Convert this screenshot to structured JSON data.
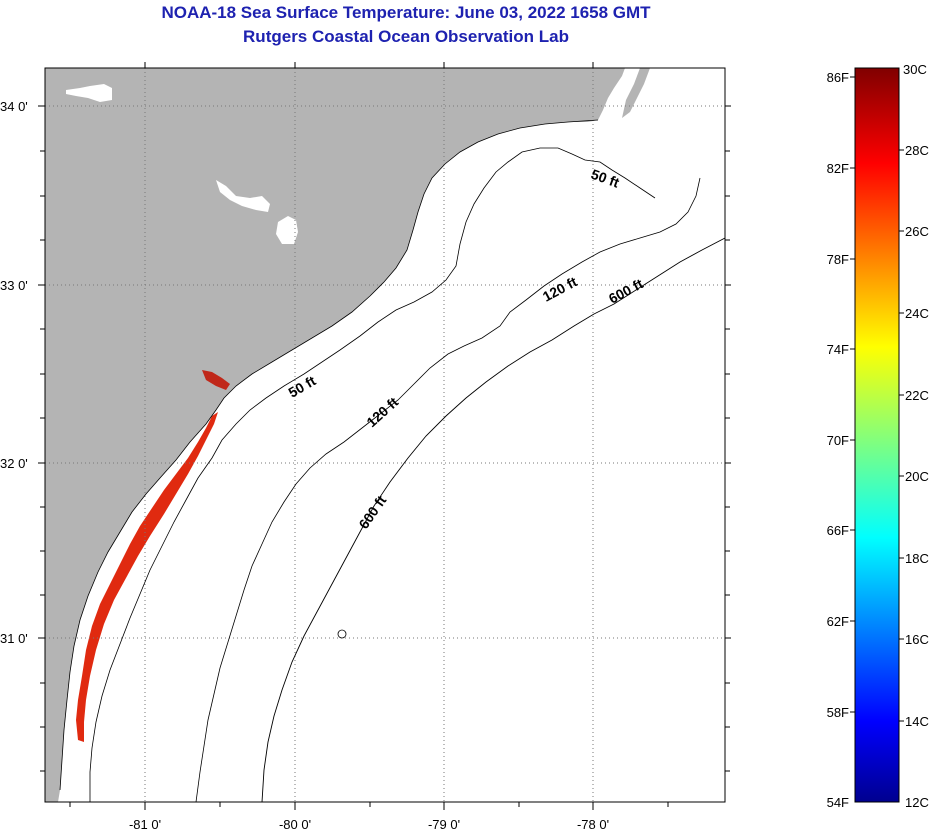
{
  "title": {
    "line1": "NOAA-18 Sea Surface Temperature:  June 03, 2022 1658 GMT",
    "line2": "Rutgers Coastal Ocean Observation Lab"
  },
  "axes": {
    "lat_labels": [
      "34 0'",
      "33 0'",
      "32 0'",
      "31 0'"
    ],
    "lon_labels": [
      "-81 0'",
      "-80 0'",
      "-79 0'",
      "-78 0'"
    ]
  },
  "contours": {
    "label_50": "50 ft",
    "label_120": "120 ft",
    "label_600": "600 ft"
  },
  "colorbar": {
    "fahrenheit": [
      "86F",
      "82F",
      "78F",
      "74F",
      "70F",
      "66F",
      "62F",
      "58F",
      "54F"
    ],
    "celsius": [
      "30C",
      "28C",
      "26C",
      "24C",
      "22C",
      "20C",
      "18C",
      "16C",
      "14C",
      "12C"
    ]
  },
  "colors": {
    "title": "#1e22b0",
    "land": "#b4b4b4",
    "sst_patch": "#e02a10"
  }
}
